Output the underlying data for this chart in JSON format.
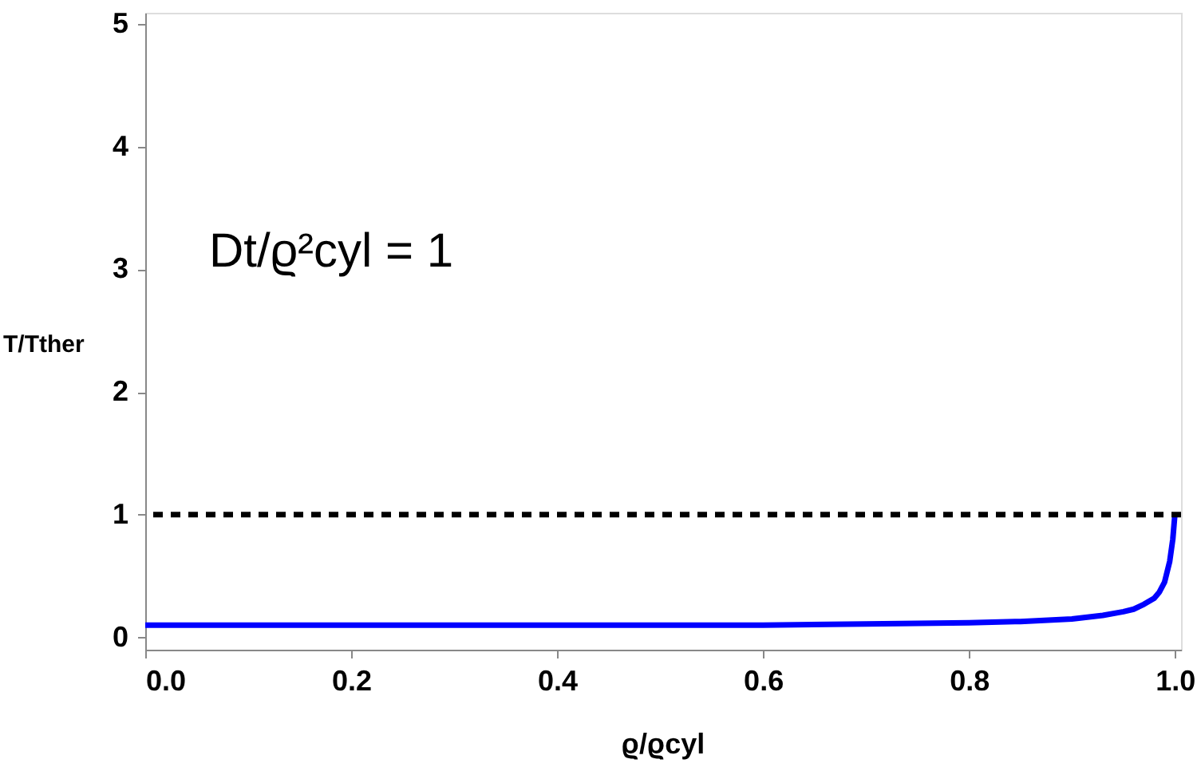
{
  "chart_data": {
    "type": "line",
    "xlabel": "ϱ/ϱcyl",
    "ylabel": "T/Tther",
    "annotations": [
      "Dt/ϱ²cyl = 1"
    ],
    "xlim": [
      0,
      1.006
    ],
    "ylim": [
      -0.1,
      5.09
    ],
    "xticks": [
      {
        "value": 0,
        "label": "0.0"
      },
      0.2,
      0.4,
      0.6,
      0.8,
      {
        "value": 1,
        "label": "1.0"
      }
    ],
    "yticks": [
      0,
      1,
      2,
      3,
      4,
      5
    ],
    "grid": false,
    "marker": "none",
    "line_style": "solid",
    "ref_lines": [
      {
        "axis": "y",
        "value": 1,
        "label": null,
        "color": "#000000",
        "line_style": "dashed"
      }
    ],
    "series": [
      {
        "color": "#0000ff",
        "x": [
          0,
          0.2,
          0.4,
          0.5,
          0.6,
          0.7,
          0.8,
          0.85,
          0.9,
          0.93,
          0.95,
          0.96,
          0.97,
          0.98,
          0.985,
          0.99,
          0.995,
          0.998,
          1.0
        ],
        "values": [
          0.1,
          0.1,
          0.1,
          0.1,
          0.1,
          0.11,
          0.12,
          0.13,
          0.15,
          0.18,
          0.21,
          0.23,
          0.27,
          0.32,
          0.37,
          0.45,
          0.62,
          0.8,
          1.0
        ]
      }
    ]
  }
}
